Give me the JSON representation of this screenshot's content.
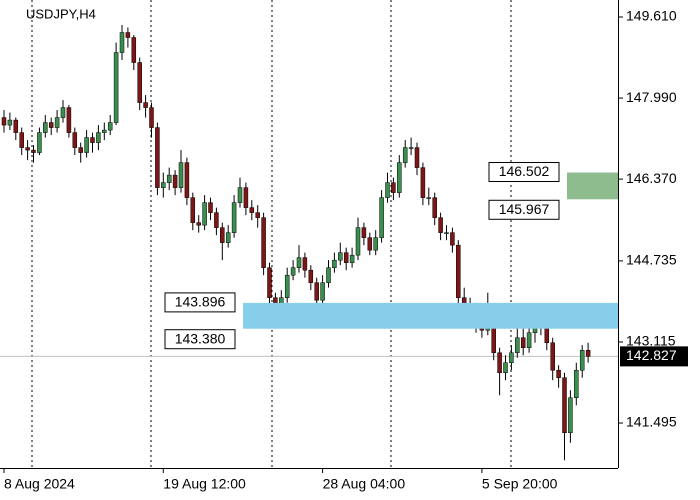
{
  "chart_data": {
    "type": "candlestick",
    "title": "USDJPY,H4",
    "categories": [
      "8 Aug 2024",
      null,
      null,
      null,
      null,
      null,
      null,
      null,
      null,
      null,
      null,
      null,
      null,
      null,
      null,
      null,
      null,
      null,
      null,
      null,
      null,
      null,
      null,
      null,
      null,
      null,
      null,
      "19 Aug 12:00",
      null,
      null,
      null,
      null,
      null,
      null,
      null,
      null,
      null,
      null,
      null,
      null,
      null,
      null,
      null,
      null,
      null,
      null,
      null,
      null,
      null,
      null,
      null,
      null,
      null,
      null,
      "28 Aug 04:00",
      null,
      null,
      null,
      null,
      null,
      null,
      null,
      null,
      null,
      null,
      null,
      null,
      null,
      null,
      null,
      null,
      null,
      null,
      null,
      null,
      null,
      null,
      null,
      null,
      null,
      null,
      "5 Sep 20:00",
      null,
      null,
      null,
      null,
      null,
      null,
      null,
      null,
      null,
      null,
      null,
      null,
      null,
      null,
      null,
      null,
      null,
      null
    ],
    "open": [
      147.6,
      147.45,
      147.55,
      147.3,
      147.0,
      146.95,
      146.9,
      147.3,
      147.5,
      147.4,
      147.6,
      147.8,
      147.3,
      147.0,
      146.9,
      147.2,
      147.1,
      147.3,
      147.35,
      147.5,
      148.9,
      149.3,
      149.2,
      148.7,
      147.9,
      147.8,
      147.4,
      146.2,
      146.3,
      146.45,
      146.2,
      146.7,
      146.0,
      145.5,
      145.45,
      145.9,
      145.7,
      145.4,
      145.1,
      145.3,
      145.9,
      146.2,
      145.8,
      145.7,
      145.6,
      144.6,
      144.0,
      143.8,
      144.0,
      144.45,
      144.6,
      144.8,
      144.55,
      144.3,
      143.95,
      144.3,
      144.6,
      144.75,
      144.9,
      144.7,
      144.85,
      145.4,
      145.2,
      144.95,
      145.2,
      146.0,
      146.3,
      146.1,
      146.7,
      147.0,
      147.0,
      146.6,
      146.0,
      146.0,
      145.6,
      145.3,
      145.3,
      145.05,
      144.0,
      143.8,
      143.6,
      143.5,
      143.35,
      143.4,
      142.9,
      142.5,
      142.7,
      142.9,
      143.2,
      143.0,
      143.3,
      143.4,
      143.5,
      143.1,
      142.55,
      142.4,
      141.3,
      142.0,
      142.55,
      142.95
    ],
    "high": [
      147.75,
      147.7,
      147.6,
      147.4,
      147.15,
      147.05,
      147.4,
      147.65,
      147.6,
      147.75,
      147.95,
      147.85,
      147.4,
      147.1,
      147.35,
      147.3,
      147.45,
      147.5,
      147.65,
      149.1,
      149.45,
      149.4,
      149.25,
      148.8,
      148.05,
      147.9,
      147.5,
      146.5,
      146.6,
      146.55,
      146.95,
      146.8,
      146.1,
      145.65,
      146.05,
      146.0,
      145.8,
      145.5,
      145.45,
      146.05,
      146.4,
      146.3,
      145.95,
      145.85,
      145.7,
      144.7,
      144.1,
      144.15,
      144.6,
      144.75,
      145.05,
      144.9,
      144.65,
      144.4,
      144.45,
      144.75,
      144.9,
      145.1,
      145.0,
      145.0,
      145.6,
      145.5,
      145.3,
      145.35,
      146.15,
      146.5,
      146.4,
      146.85,
      147.15,
      147.2,
      147.1,
      146.7,
      146.2,
      146.1,
      145.7,
      145.45,
      145.4,
      145.15,
      144.2,
      144.0,
      143.9,
      143.65,
      144.1,
      143.55,
      143.0,
      142.85,
      143.05,
      143.45,
      143.4,
      143.55,
      143.7,
      143.75,
      143.6,
      143.2,
      142.65,
      142.5,
      142.15,
      142.7,
      143.05,
      143.1
    ],
    "low": [
      147.3,
      147.35,
      147.15,
      146.85,
      146.75,
      146.7,
      146.85,
      147.2,
      147.25,
      147.3,
      147.5,
      147.2,
      146.85,
      146.7,
      146.8,
      146.9,
      146.95,
      147.15,
      147.25,
      147.45,
      148.75,
      149.0,
      148.55,
      147.75,
      147.6,
      147.2,
      146.05,
      146.0,
      146.15,
      146.05,
      146.1,
      145.85,
      145.35,
      145.3,
      145.35,
      145.55,
      145.25,
      144.75,
      145.0,
      145.2,
      145.8,
      145.65,
      145.55,
      145.4,
      144.45,
      143.75,
      143.6,
      143.7,
      143.9,
      144.35,
      144.5,
      144.4,
      144.15,
      143.8,
      143.85,
      144.2,
      144.5,
      144.65,
      144.55,
      144.6,
      144.75,
      145.05,
      144.85,
      144.85,
      145.1,
      145.9,
      145.95,
      146.0,
      146.6,
      146.85,
      146.45,
      145.85,
      145.85,
      145.45,
      145.15,
      145.15,
      144.9,
      143.85,
      143.6,
      143.4,
      143.3,
      143.2,
      143.25,
      142.75,
      142.05,
      142.35,
      142.55,
      142.8,
      142.85,
      142.9,
      143.1,
      143.25,
      142.95,
      142.35,
      142.2,
      140.75,
      141.1,
      141.85,
      142.4,
      142.7
    ],
    "close": [
      147.45,
      147.55,
      147.3,
      147.0,
      146.95,
      146.9,
      147.3,
      147.5,
      147.4,
      147.6,
      147.8,
      147.3,
      147.0,
      146.9,
      147.2,
      147.1,
      147.3,
      147.35,
      147.5,
      148.9,
      149.3,
      149.2,
      148.7,
      147.9,
      147.8,
      147.4,
      146.2,
      146.3,
      146.45,
      146.2,
      146.7,
      146.0,
      145.5,
      145.45,
      145.9,
      145.7,
      145.4,
      145.1,
      145.3,
      145.9,
      146.2,
      145.8,
      145.7,
      145.6,
      144.6,
      144.0,
      143.8,
      144.0,
      144.45,
      144.6,
      144.8,
      144.55,
      144.3,
      143.95,
      144.3,
      144.6,
      144.75,
      144.9,
      144.7,
      144.85,
      145.4,
      145.2,
      144.95,
      145.2,
      146.0,
      146.3,
      146.1,
      146.7,
      147.0,
      147.0,
      146.6,
      146.0,
      146.0,
      145.6,
      145.3,
      145.3,
      145.05,
      144.0,
      143.8,
      143.6,
      143.5,
      143.35,
      143.4,
      142.9,
      142.5,
      142.7,
      142.9,
      143.2,
      143.0,
      143.3,
      143.4,
      143.5,
      143.1,
      142.55,
      142.4,
      141.3,
      142.0,
      142.55,
      142.95,
      142.827
    ],
    "bull_color": "#3a8f4f",
    "bear_color": "#7d1616",
    "wick_color": "#000000",
    "ylim": [
      140.596,
      149.95
    ],
    "yticks": [
      {
        "value": 149.61,
        "label": "149.610"
      },
      {
        "value": 147.99,
        "label": "147.990"
      },
      {
        "value": 146.37,
        "label": "146.370"
      },
      144.735,
      143.115,
      141.495
    ],
    "last_price": 142.827,
    "zones": [
      {
        "top": 143.896,
        "bottom": {
          "value": 143.38,
          "label": "143.380"
        },
        "color": "#87ceeb"
      },
      {
        "top": 146.502,
        "bottom": 145.967,
        "color": "#8fbc8f"
      }
    ]
  }
}
